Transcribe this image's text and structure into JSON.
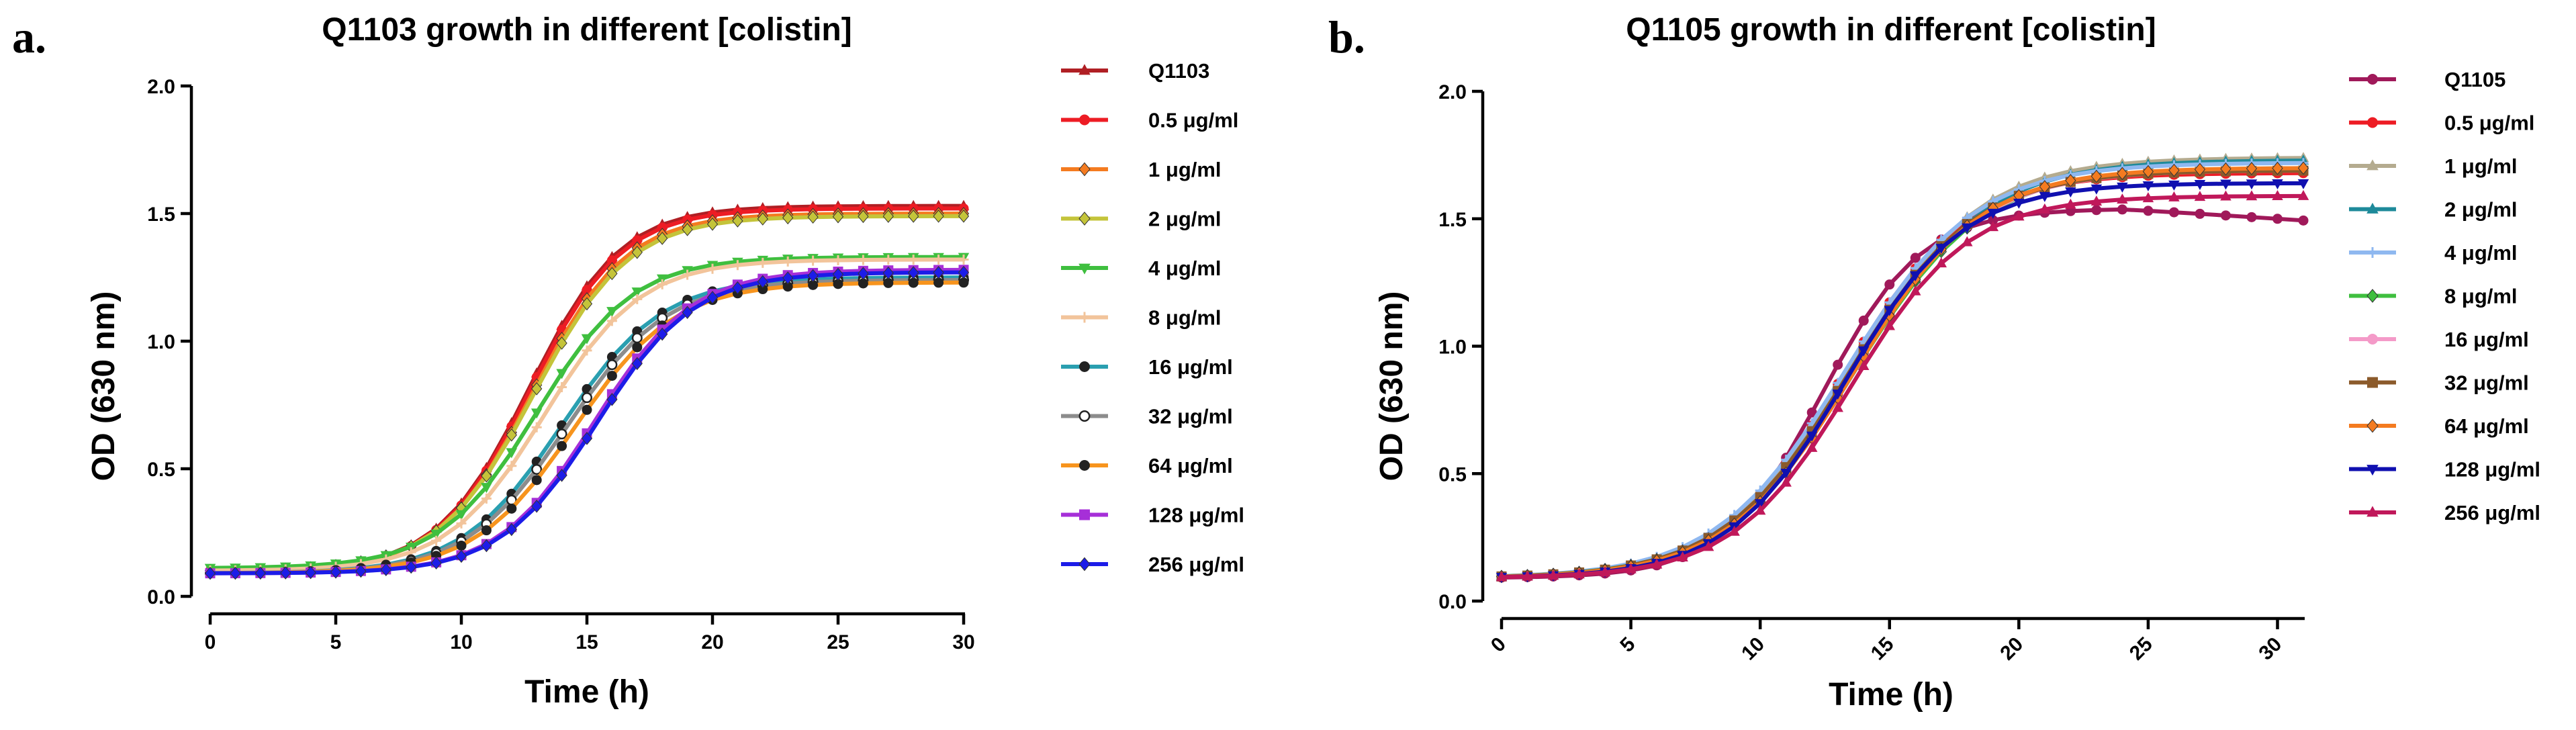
{
  "chart_data": [
    {
      "type": "line",
      "panel_label": "a.",
      "title": "Q1103 growth in different [colistin]",
      "xlabel": "Time (h)",
      "ylabel": "OD (630 nm)",
      "xlim": [
        0,
        30
      ],
      "ylim": [
        0,
        2.0
      ],
      "xticks": [
        0,
        5,
        10,
        15,
        20,
        25,
        30
      ],
      "xtick_labels": [
        "0",
        "5",
        "10",
        "15",
        "20",
        "25",
        "30"
      ],
      "yticks": [
        0,
        0.5,
        1.0,
        1.5,
        2.0
      ],
      "ytick_labels": [
        "0.0",
        "0.5",
        "1.0",
        "1.5",
        "2.0"
      ],
      "x_tick_rotation": 0,
      "legend_position": "right",
      "series": [
        {
          "name": "Q1103",
          "color": "#b01f24",
          "marker": "triangle",
          "lag": 0.0,
          "k": 0.55,
          "max": 1.53,
          "base": 0.1
        },
        {
          "name": "0.5 μg/ml",
          "color": "#ed1c24",
          "marker": "circle",
          "lag": 0.05,
          "k": 0.55,
          "max": 1.52,
          "base": 0.1
        },
        {
          "name": "1 μg/ml",
          "color": "#f47b20",
          "marker": "diamond",
          "lag": 0.15,
          "k": 0.54,
          "max": 1.5,
          "base": 0.1
        },
        {
          "name": "2 μg/ml",
          "color": "#c4c43a",
          "marker": "diamond",
          "lag": 0.2,
          "k": 0.53,
          "max": 1.49,
          "base": 0.1
        },
        {
          "name": "4 μg/ml",
          "color": "#3fbf3f",
          "marker": "triangle-down",
          "lag": 0.3,
          "k": 0.52,
          "max": 1.33,
          "base": 0.11
        },
        {
          "name": "8 μg/ml",
          "color": "#f2c49b",
          "marker": "plus",
          "lag": 0.6,
          "k": 0.52,
          "max": 1.32,
          "base": 0.1
        },
        {
          "name": "16 μg/ml",
          "color": "#2a9fb0",
          "marker": "half-circle",
          "lag": 1.3,
          "k": 0.5,
          "max": 1.25,
          "base": 0.09
        },
        {
          "name": "32 μg/ml",
          "color": "#8c8c8c",
          "marker": "open-circle",
          "lag": 1.5,
          "k": 0.5,
          "max": 1.24,
          "base": 0.09
        },
        {
          "name": "64 μg/ml",
          "color": "#f7941d",
          "marker": "half-circle",
          "lag": 1.8,
          "k": 0.5,
          "max": 1.23,
          "base": 0.09
        },
        {
          "name": "128 μg/ml",
          "color": "#a62fd8",
          "marker": "square",
          "lag": 2.6,
          "k": 0.52,
          "max": 1.28,
          "base": 0.09
        },
        {
          "name": "256 μg/ml",
          "color": "#1c1ce8",
          "marker": "diamond",
          "lag": 2.7,
          "k": 0.52,
          "max": 1.27,
          "base": 0.09
        }
      ]
    },
    {
      "type": "line",
      "panel_label": "b.",
      "title": "Q1105 growth in different [colistin]",
      "xlabel": "Time (h)",
      "ylabel": "OD (630 nm)",
      "xlim": [
        0,
        31
      ],
      "ylim": [
        0,
        2.0
      ],
      "xticks": [
        0,
        5,
        10,
        15,
        20,
        25,
        30
      ],
      "xtick_labels": [
        "0",
        "5",
        "10",
        "15",
        "20",
        "25",
        "30"
      ],
      "yticks": [
        0,
        0.5,
        1.0,
        1.5,
        2.0
      ],
      "ytick_labels": [
        "0.0",
        "0.5",
        "1.0",
        "1.5",
        "2.0"
      ],
      "x_tick_rotation": -45,
      "legend_position": "right",
      "series": [
        {
          "name": "Q1105",
          "color": "#a0195a",
          "marker": "circle",
          "lag": -0.3,
          "k": 0.52,
          "max": 1.54,
          "base": 0.09,
          "decline": 0.04
        },
        {
          "name": "0.5 μg/ml",
          "color": "#ed1c24",
          "marker": "circle",
          "lag": 0.5,
          "k": 0.42,
          "max": 1.68,
          "base": 0.09
        },
        {
          "name": "1 μg/ml",
          "color": "#b4ab8f",
          "marker": "triangle",
          "lag": 0.8,
          "k": 0.4,
          "max": 1.74,
          "base": 0.09
        },
        {
          "name": "2 μg/ml",
          "color": "#1e8a9a",
          "marker": "triangle",
          "lag": 1.0,
          "k": 0.4,
          "max": 1.73,
          "base": 0.09
        },
        {
          "name": "4 μg/ml",
          "color": "#8fb8f0",
          "marker": "plus",
          "lag": 0.6,
          "k": 0.4,
          "max": 1.72,
          "base": 0.09
        },
        {
          "name": "8 μg/ml",
          "color": "#3fbf3f",
          "marker": "diamond",
          "lag": 0.9,
          "k": 0.4,
          "max": 1.7,
          "base": 0.09
        },
        {
          "name": "16 μg/ml",
          "color": "#f49ac8",
          "marker": "circle",
          "lag": 0.8,
          "k": 0.41,
          "max": 1.69,
          "base": 0.09
        },
        {
          "name": "32 μg/ml",
          "color": "#8b5a2b",
          "marker": "square",
          "lag": 0.7,
          "k": 0.41,
          "max": 1.69,
          "base": 0.09
        },
        {
          "name": "64 μg/ml",
          "color": "#f47b20",
          "marker": "diamond",
          "lag": 0.9,
          "k": 0.41,
          "max": 1.7,
          "base": 0.09
        },
        {
          "name": "128 μg/ml",
          "color": "#1010b0",
          "marker": "triangle-down",
          "lag": 0.6,
          "k": 0.44,
          "max": 1.64,
          "base": 0.09
        },
        {
          "name": "256 μg/ml",
          "color": "#c0185a",
          "marker": "triangle",
          "lag": 0.8,
          "k": 0.44,
          "max": 1.59,
          "base": 0.09
        }
      ]
    }
  ],
  "model_note": "Curves are logistic growth: OD(t) = base + (max-base)/(1+exp(-k*(t-(12.7+lag)))), sampled every 1 h from 0 to 30 h."
}
